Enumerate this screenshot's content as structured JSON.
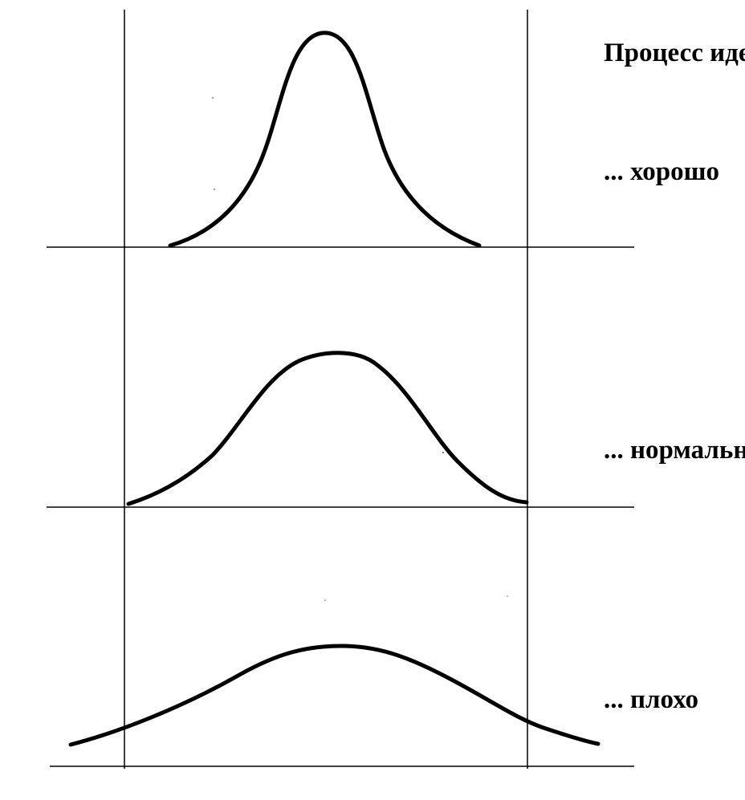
{
  "diagram": {
    "title": "Процесс иде",
    "curves": [
      {
        "label": "... хорошо",
        "quality": "good",
        "spread": "narrow"
      },
      {
        "label": "... нормально",
        "quality": "normal",
        "spread": "medium"
      },
      {
        "label": "... плохо",
        "quality": "bad",
        "spread": "wide"
      }
    ],
    "colors": {
      "line": "#000000",
      "background": "#ffffff"
    }
  }
}
